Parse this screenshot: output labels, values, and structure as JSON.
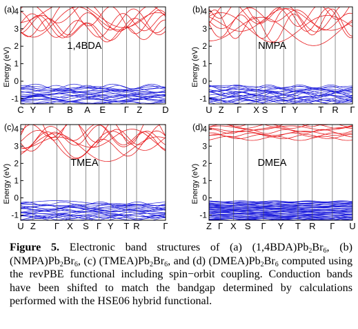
{
  "panels": [
    {
      "letter": "(a)",
      "name": "1,4BDA",
      "kpoints": [
        "C",
        "Y",
        "Γ",
        "B",
        "A",
        "E",
        "Γ",
        "Z",
        "D"
      ],
      "y_label": "Energy (eV)",
      "y_ticks": [
        "4",
        "3",
        "2",
        "1",
        "0",
        "-1"
      ],
      "band_colors": {
        "conduction": "#e8191c",
        "valence": "#1a1adb"
      }
    },
    {
      "letter": "(b)",
      "name": "NMPA",
      "kpoints": [
        "U",
        "Z",
        "Γ",
        "X",
        "S",
        "Γ",
        "Y",
        "T",
        "R",
        "Γ"
      ],
      "y_label": "Energy (eV)",
      "y_ticks": [
        "4",
        "3",
        "2",
        "1",
        "0",
        "-1"
      ],
      "band_colors": {
        "conduction": "#e8191c",
        "valence": "#1a1adb"
      }
    },
    {
      "letter": "(c)",
      "name": "TMEA",
      "kpoints": [
        "U",
        "Z",
        "Γ",
        "X",
        "S",
        "Γ",
        "Y",
        "T",
        "R",
        "Γ"
      ],
      "y_label": "Energy (eV)",
      "y_ticks": [
        "4",
        "3",
        "2",
        "1",
        "0",
        "-1"
      ],
      "band_colors": {
        "conduction": "#e8191c",
        "valence": "#1a1adb"
      }
    },
    {
      "letter": "(d)",
      "name": "DMEA",
      "kpoints": [
        "Z",
        "Γ",
        "X",
        "S",
        "Γ",
        "Y",
        "T",
        "R",
        "Γ",
        "U"
      ],
      "y_label": "Energy (eV)",
      "y_ticks": [
        "4",
        "3",
        "2",
        "1",
        "0",
        "-1"
      ],
      "band_colors": {
        "conduction": "#e8191c",
        "valence": "#1a1adb"
      }
    }
  ],
  "caption": {
    "label": "Figure 5.",
    "intro": " Electronic band structures of (a) (1,4BDA)Pb",
    "sub_2": "2",
    "br": "Br",
    "sub_6": "6",
    "b_open": ", (b) (NMPA)Pb",
    "c_open": ", (c) (TMEA)Pb",
    "d_open": ", and (d) (DMEA)Pb",
    "rest": " computed using the revPBE functional including spin−orbit coupling. Conduction bands have been shifted to match the bandgap determined by calculations performed with the HSE06 hybrid functional."
  }
}
